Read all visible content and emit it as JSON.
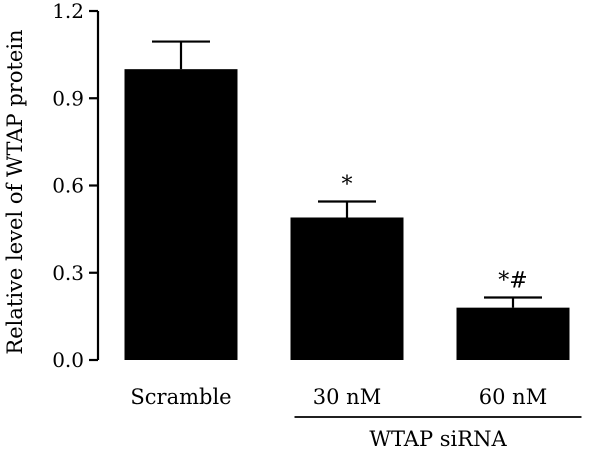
{
  "chart_data": {
    "type": "bar",
    "categories": [
      "Scramble",
      "30 nM",
      "60 nM"
    ],
    "values": [
      1.0,
      0.49,
      0.18
    ],
    "errors": [
      0.095,
      0.055,
      0.035
    ],
    "annotations": [
      "",
      "*",
      "*#"
    ],
    "ylabel": "Relative level of WTAP protein",
    "xlabel": "",
    "group_label": "WTAP siRNA",
    "group_span": [
      "30 nM",
      "60 nM"
    ],
    "ylim": [
      0,
      1.2
    ],
    "yticks": [
      "0.0",
      "0.3",
      "0.6",
      "0.9",
      "1.2"
    ],
    "ytick_values": [
      0,
      0.3,
      0.6,
      0.9,
      1.2
    ],
    "bar_color": "#000000",
    "grid": false,
    "legend": "none"
  }
}
